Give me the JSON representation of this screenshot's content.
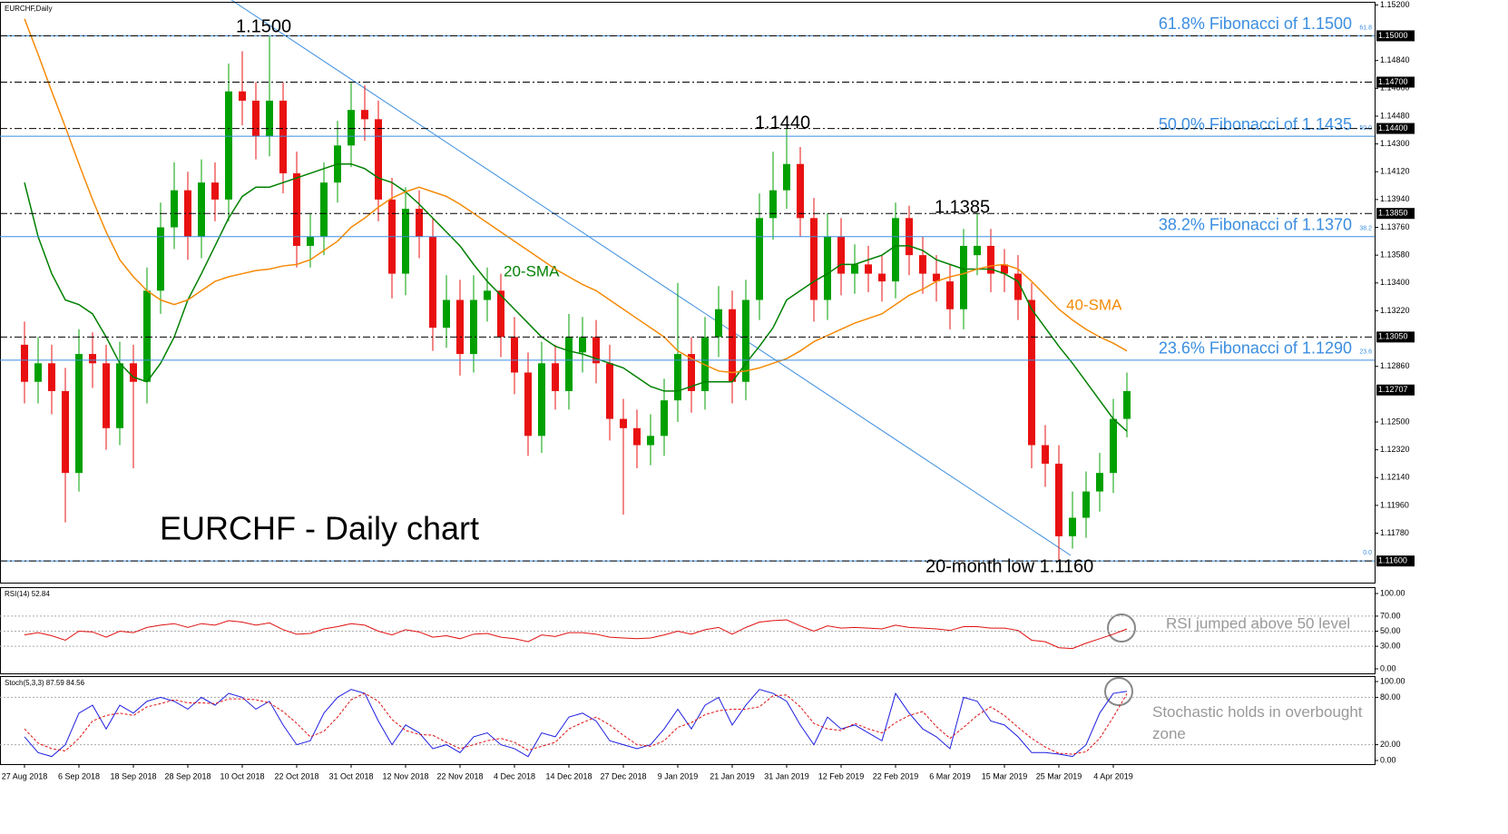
{
  "chart_data": [
    {
      "type": "candlestick",
      "title": "EURCHF,Daily",
      "up_color": "#00a000",
      "down_color": "#e81010",
      "categories": [
        "27 Aug 2018",
        null,
        null,
        null,
        "6 Sep 2018",
        null,
        null,
        null,
        "18 Sep 2018",
        null,
        null,
        null,
        "28 Sep 2018",
        null,
        null,
        null,
        "10 Oct 2018",
        null,
        null,
        null,
        "22 Oct 2018",
        null,
        null,
        null,
        "31 Oct 2018",
        null,
        null,
        null,
        "12 Nov 2018",
        null,
        null,
        null,
        "22 Nov 2018",
        null,
        null,
        null,
        "4 Dec 2018",
        null,
        null,
        null,
        "14 Dec 2018",
        null,
        null,
        null,
        "27 Dec 2018",
        null,
        null,
        null,
        "9 Jan 2019",
        null,
        null,
        null,
        "21 Jan 2019",
        null,
        null,
        null,
        "31 Jan 2019",
        null,
        null,
        null,
        "12 Feb 2019",
        null,
        null,
        null,
        "22 Feb 2019",
        null,
        null,
        null,
        "6 Mar 2019",
        null,
        null,
        null,
        "15 Mar 2019",
        null,
        null,
        null,
        "25 Mar 2019",
        null,
        null,
        null,
        "4 Apr 2019",
        null
      ],
      "open": [
        1.13,
        1.1276,
        1.1288,
        1.127,
        1.1217,
        1.1294,
        1.1288,
        1.1246,
        1.1288,
        1.1276,
        1.1335,
        1.1376,
        1.14,
        1.137,
        1.1405,
        1.1394,
        1.1464,
        1.1458,
        1.1435,
        1.1458,
        1.1411,
        1.1364,
        1.137,
        1.1405,
        1.1429,
        1.1452,
        1.1446,
        1.1394,
        1.1346,
        1.1388,
        1.137,
        1.1311,
        1.1329,
        1.1294,
        1.1329,
        1.1335,
        1.1305,
        1.1282,
        1.1241,
        1.1288,
        1.127,
        1.1295,
        1.1305,
        1.1288,
        1.1252,
        1.1246,
        1.1235,
        1.1241,
        1.1264,
        1.1294,
        1.127,
        1.1305,
        1.1323,
        1.1276,
        1.1329,
        1.1382,
        1.14,
        1.1417,
        1.1382,
        1.1329,
        1.137,
        1.1346,
        1.1352,
        1.1346,
        1.1341,
        1.1382,
        1.1358,
        1.1346,
        1.1341,
        1.1323,
        1.1358,
        1.1364,
        1.1352,
        1.1346,
        1.1329,
        1.1235,
        1.1223,
        1.1176,
        1.1188,
        1.1205,
        1.1217,
        1.1252
      ],
      "high": [
        1.1315,
        1.1305,
        1.13,
        1.1285,
        1.131,
        1.1308,
        1.13,
        1.1302,
        1.13,
        1.135,
        1.1392,
        1.1418,
        1.1412,
        1.142,
        1.1418,
        1.1482,
        1.149,
        1.147,
        1.15,
        1.147,
        1.1425,
        1.1385,
        1.1418,
        1.1445,
        1.147,
        1.1468,
        1.1458,
        1.1408,
        1.1402,
        1.14,
        1.1382,
        1.1345,
        1.1342,
        1.1345,
        1.135,
        1.1346,
        1.1318,
        1.1295,
        1.1302,
        1.13,
        1.132,
        1.1318,
        1.1316,
        1.13,
        1.1265,
        1.1258,
        1.1255,
        1.1278,
        1.134,
        1.1305,
        1.1318,
        1.1338,
        1.1335,
        1.1342,
        1.1398,
        1.1425,
        1.144,
        1.1428,
        1.1395,
        1.1385,
        1.1382,
        1.1365,
        1.1364,
        1.1358,
        1.1392,
        1.139,
        1.137,
        1.1358,
        1.1352,
        1.1375,
        1.1385,
        1.1375,
        1.1362,
        1.1358,
        1.134,
        1.1248,
        1.1235,
        1.1205,
        1.1218,
        1.123,
        1.1265,
        1.1282
      ],
      "low": [
        1.1262,
        1.1262,
        1.1255,
        1.1185,
        1.1205,
        1.1272,
        1.1232,
        1.1235,
        1.122,
        1.1262,
        1.132,
        1.1362,
        1.1355,
        1.1356,
        1.138,
        1.138,
        1.1442,
        1.142,
        1.1422,
        1.1398,
        1.135,
        1.135,
        1.1358,
        1.1392,
        1.1415,
        1.1432,
        1.138,
        1.133,
        1.1332,
        1.1356,
        1.1296,
        1.1298,
        1.128,
        1.1282,
        1.1315,
        1.1292,
        1.1268,
        1.1228,
        1.123,
        1.1258,
        1.1258,
        1.1282,
        1.1275,
        1.1238,
        1.119,
        1.122,
        1.1222,
        1.1228,
        1.125,
        1.1256,
        1.1258,
        1.1292,
        1.1262,
        1.1264,
        1.1316,
        1.1368,
        1.1388,
        1.137,
        1.1315,
        1.1316,
        1.1332,
        1.1333,
        1.1334,
        1.1328,
        1.133,
        1.1345,
        1.1333,
        1.1328,
        1.131,
        1.131,
        1.1345,
        1.1334,
        1.1334,
        1.1316,
        1.122,
        1.1208,
        1.116,
        1.1168,
        1.1175,
        1.1192,
        1.1204,
        1.124
      ],
      "close": [
        1.1276,
        1.1288,
        1.127,
        1.1217,
        1.1294,
        1.1288,
        1.1246,
        1.1288,
        1.1276,
        1.1335,
        1.1376,
        1.14,
        1.137,
        1.1405,
        1.1394,
        1.1464,
        1.1458,
        1.1435,
        1.1458,
        1.1411,
        1.1364,
        1.137,
        1.1405,
        1.1429,
        1.1452,
        1.1446,
        1.1394,
        1.1346,
        1.1388,
        1.137,
        1.1311,
        1.1329,
        1.1294,
        1.1329,
        1.1335,
        1.1305,
        1.1282,
        1.1241,
        1.1288,
        1.127,
        1.1305,
        1.1305,
        1.1288,
        1.1252,
        1.1246,
        1.1235,
        1.1241,
        1.1264,
        1.1294,
        1.127,
        1.1305,
        1.1323,
        1.1276,
        1.1329,
        1.1382,
        1.14,
        1.1417,
        1.1382,
        1.1329,
        1.137,
        1.1346,
        1.1352,
        1.1346,
        1.1341,
        1.1382,
        1.1358,
        1.1346,
        1.1341,
        1.1323,
        1.1364,
        1.1364,
        1.1346,
        1.1346,
        1.1329,
        1.1235,
        1.1223,
        1.1176,
        1.1188,
        1.1205,
        1.1217,
        1.1252,
        1.127
      ],
      "series": [
        {
          "name": "20-SMA",
          "color": "#008000",
          "values": [
            1.1405,
            1.137,
            1.1346,
            1.1329,
            1.1326,
            1.132,
            1.1305,
            1.1288,
            1.1279,
            1.1276,
            1.1288,
            1.1305,
            1.1329,
            1.1346,
            1.1364,
            1.1382,
            1.1396,
            1.1402,
            1.1402,
            1.1405,
            1.1408,
            1.1411,
            1.1414,
            1.1417,
            1.1417,
            1.1414,
            1.1408,
            1.1405,
            1.1399,
            1.1391,
            1.1382,
            1.1373,
            1.1364,
            1.1352,
            1.1341,
            1.1332,
            1.1323,
            1.1314,
            1.1305,
            1.1299,
            1.1296,
            1.1294,
            1.1291,
            1.1288,
            1.1285,
            1.1279,
            1.1273,
            1.127,
            1.127,
            1.1273,
            1.1276,
            1.1276,
            1.1276,
            1.1288,
            1.1299,
            1.1311,
            1.1329,
            1.1335,
            1.1341,
            1.1346,
            1.1352,
            1.1352,
            1.1355,
            1.1358,
            1.1364,
            1.1364,
            1.1361,
            1.1355,
            1.1352,
            1.1349,
            1.1349,
            1.1349,
            1.1346,
            1.1341,
            1.1323,
            1.1311,
            1.1299,
            1.1288,
            1.1276,
            1.1264,
            1.1252,
            1.1244
          ]
        },
        {
          "name": "40-SMA",
          "color": "#f58a07",
          "values": [
            1.1511,
            1.1488,
            1.1464,
            1.1441,
            1.1417,
            1.1394,
            1.1373,
            1.1355,
            1.1344,
            1.1335,
            1.1329,
            1.1326,
            1.1329,
            1.1335,
            1.1341,
            1.1344,
            1.1346,
            1.1348,
            1.1349,
            1.1351,
            1.1352,
            1.1355,
            1.1361,
            1.1367,
            1.1376,
            1.1382,
            1.1389,
            1.1395,
            1.1399,
            1.1402,
            1.1399,
            1.1396,
            1.1391,
            1.1385,
            1.1379,
            1.1373,
            1.1367,
            1.1361,
            1.1355,
            1.1349,
            1.1344,
            1.1339,
            1.1335,
            1.1329,
            1.1323,
            1.1317,
            1.1311,
            1.1305,
            1.1296,
            1.1291,
            1.1287,
            1.1283,
            1.1282,
            1.1283,
            1.1285,
            1.1288,
            1.1291,
            1.1296,
            1.1302,
            1.1306,
            1.131,
            1.1314,
            1.1317,
            1.132,
            1.1326,
            1.1332,
            1.1336,
            1.1341,
            1.1344,
            1.1346,
            1.1349,
            1.1351,
            1.1352,
            1.1349,
            1.1341,
            1.1332,
            1.1323,
            1.1316,
            1.131,
            1.1305,
            1.1301,
            1.1296
          ]
        }
      ],
      "ylim": [
        1.1146,
        1.1522
      ],
      "yticks": [
        {
          "value": 1.152,
          "label": "1.15200"
        },
        {
          "value": 1.1484,
          "label": "1.14840"
        },
        {
          "value": 1.1466,
          "label": "1.14660"
        },
        {
          "value": 1.1448,
          "label": "1.14480"
        },
        {
          "value": 1.143,
          "label": "1.14300"
        },
        {
          "value": 1.1412,
          "label": "1.14120"
        },
        {
          "value": 1.1394,
          "label": "1.13940"
        },
        {
          "value": 1.1376,
          "label": "1.13760"
        },
        {
          "value": 1.1358,
          "label": "1.13580"
        },
        {
          "value": 1.134,
          "label": "1.13400"
        },
        {
          "value": 1.1322,
          "label": "1.13220"
        },
        {
          "value": 1.1286,
          "label": "1.12860"
        },
        {
          "value": 1.125,
          "label": "1.12500"
        },
        {
          "value": 1.1232,
          "label": "1.12320"
        },
        {
          "value": 1.1214,
          "label": "1.12140"
        },
        {
          "value": 1.1196,
          "label": "1.11960"
        },
        {
          "value": 1.1178,
          "label": "1.11780"
        }
      ],
      "levels": [
        {
          "value": 1.15,
          "label": "1.15000",
          "line": "dashdot"
        },
        {
          "value": 1.147,
          "label": "1.14700",
          "line": "dashdot"
        },
        {
          "value": 1.144,
          "label": "1.14400",
          "line": "dashdot"
        },
        {
          "value": 1.1385,
          "label": "1.13850",
          "line": "dashdot"
        },
        {
          "value": 1.1305,
          "label": "1.13050",
          "line": "dashdot"
        },
        {
          "value": 1.116,
          "label": "1.11600",
          "line": "dashdot"
        }
      ],
      "last_price": {
        "value": 1.12707,
        "label": "1.12707"
      },
      "fibonacci": [
        {
          "value": 1.15,
          "text": "61.8% Fibonacci of 1.1500",
          "ratio": "61.8"
        },
        {
          "value": 1.1435,
          "text": "50.0% Fibonacci of 1.1435",
          "ratio": "50.0"
        },
        {
          "value": 1.137,
          "text": "38.2% Fibonacci of 1.1370",
          "ratio": "38.2"
        },
        {
          "value": 1.129,
          "text": "23.6% Fibonacci of 1.1290",
          "ratio": "23.6"
        },
        {
          "value": 1.116,
          "ratio": "0.0"
        }
      ],
      "fib_color": "#3b8ee0",
      "annotations": [
        "1.1500",
        "1.1440",
        "1.1385",
        "20-month low 1.1160",
        "EURCHF - Daily chart"
      ]
    },
    {
      "type": "line",
      "title": "RSI(14) 52.84",
      "ylim": [
        0,
        100
      ],
      "grid": true,
      "yticks": [
        {
          "value": 100,
          "label": "100.00"
        },
        {
          "value": 70,
          "label": "70.00"
        },
        {
          "value": 50,
          "label": "50.00"
        },
        {
          "value": 30,
          "label": "30.00"
        },
        {
          "value": 0,
          "label": "0.00"
        }
      ],
      "series": [
        {
          "color": "#e01010",
          "values": [
            45,
            48,
            44,
            38,
            50,
            49,
            42,
            50,
            48,
            55,
            58,
            60,
            55,
            60,
            58,
            64,
            62,
            58,
            61,
            52,
            46,
            47,
            53,
            56,
            60,
            58,
            50,
            45,
            52,
            49,
            42,
            44,
            40,
            46,
            47,
            42,
            40,
            36,
            45,
            43,
            48,
            48,
            46,
            42,
            41,
            40,
            41,
            45,
            50,
            46,
            52,
            55,
            46,
            55,
            62,
            64,
            65,
            57,
            50,
            57,
            54,
            55,
            54,
            53,
            58,
            55,
            54,
            53,
            51,
            56,
            56,
            54,
            54,
            51,
            38,
            36,
            28,
            27,
            34,
            40,
            46,
            52.84
          ]
        }
      ],
      "annotations": [
        "RSI jumped above 50 level"
      ]
    },
    {
      "type": "line",
      "title": "Stoch(5,3,3) 87.59 84.56",
      "ylim": [
        0,
        100
      ],
      "grid": true,
      "yticks": [
        {
          "value": 100,
          "label": "100.00"
        },
        {
          "value": 80,
          "label": "80.00"
        },
        {
          "value": 20,
          "label": "20.00"
        },
        {
          "value": 0,
          "label": "0.00"
        }
      ],
      "series": [
        {
          "color": "#1e1ee0",
          "values": [
            30,
            10,
            5,
            20,
            60,
            70,
            40,
            70,
            60,
            75,
            80,
            75,
            65,
            80,
            70,
            85,
            80,
            65,
            75,
            45,
            20,
            25,
            60,
            80,
            90,
            85,
            50,
            20,
            45,
            35,
            15,
            20,
            10,
            30,
            35,
            20,
            15,
            5,
            35,
            30,
            55,
            60,
            50,
            25,
            20,
            15,
            20,
            40,
            65,
            40,
            70,
            80,
            45,
            70,
            90,
            85,
            75,
            45,
            20,
            55,
            40,
            45,
            35,
            25,
            85,
            60,
            40,
            30,
            15,
            80,
            75,
            50,
            45,
            30,
            10,
            10,
            8,
            5,
            20,
            60,
            85,
            87.59
          ]
        },
        {
          "color": "#e01010",
          "dash": true,
          "values": [
            40,
            22,
            15,
            12,
            28,
            50,
            57,
            60,
            57,
            68,
            72,
            77,
            73,
            73,
            72,
            78,
            78,
            77,
            73,
            62,
            47,
            30,
            37,
            55,
            77,
            85,
            75,
            52,
            38,
            33,
            32,
            23,
            15,
            20,
            25,
            28,
            23,
            13,
            18,
            23,
            40,
            48,
            55,
            45,
            32,
            20,
            18,
            25,
            42,
            48,
            58,
            63,
            65,
            65,
            68,
            82,
            83,
            68,
            47,
            40,
            38,
            47,
            40,
            35,
            48,
            57,
            62,
            43,
            28,
            42,
            57,
            68,
            57,
            42,
            28,
            17,
            9,
            8,
            11,
            28,
            55,
            84.56
          ]
        }
      ],
      "annotations": [
        "Stochastic holds in overbought zone"
      ]
    }
  ]
}
